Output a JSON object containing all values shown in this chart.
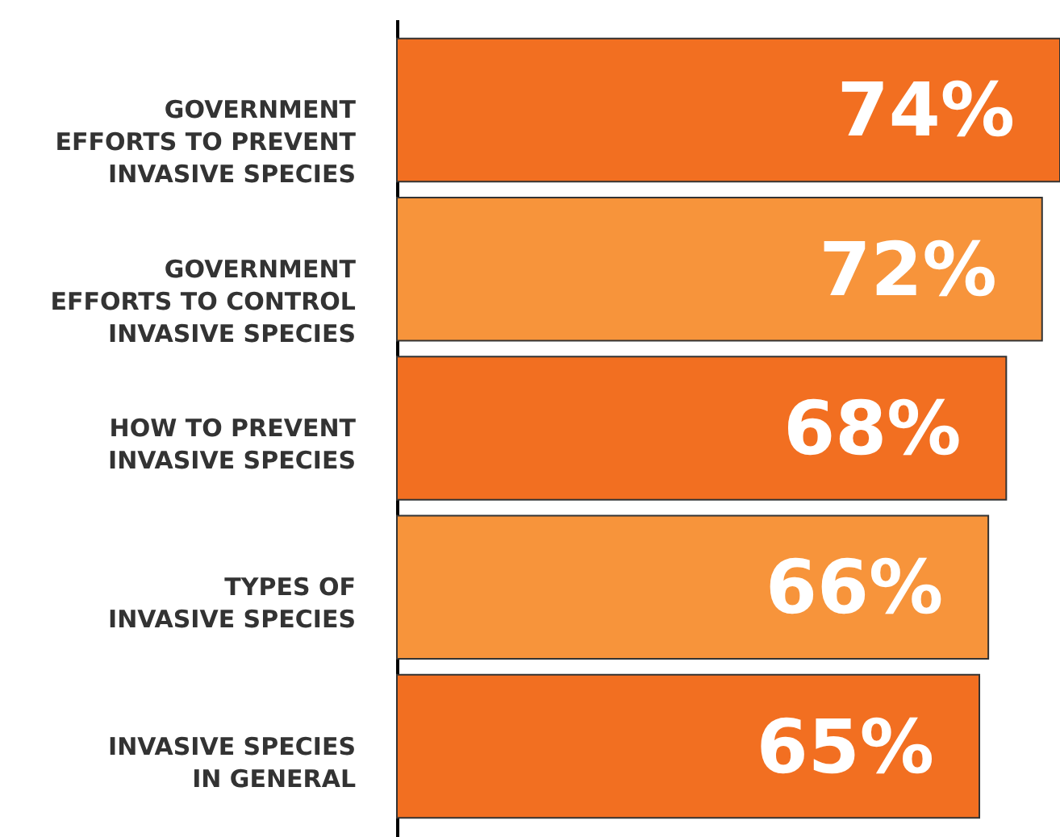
{
  "chart_data": {
    "type": "bar",
    "orientation": "horizontal",
    "categories": [
      "GOVERNMENT\nEFFORTS TO PREVENT\nINVASIVE SPECIES",
      "GOVERNMENT\nEFFORTS TO CONTROL\nINVASIVE SPECIES",
      "HOW TO PREVENT\nINVASIVE SPECIES",
      "TYPES OF\nINVASIVE SPECIES",
      "INVASIVE SPECIES\nIN GENERAL"
    ],
    "values": [
      74,
      72,
      68,
      66,
      65
    ],
    "colors": [
      "#f26f21",
      "#f7943b",
      "#f26f21",
      "#f7943b",
      "#f26f21"
    ],
    "value_labels": [
      "74%",
      "72%",
      "68%",
      "66%",
      "65%"
    ]
  }
}
